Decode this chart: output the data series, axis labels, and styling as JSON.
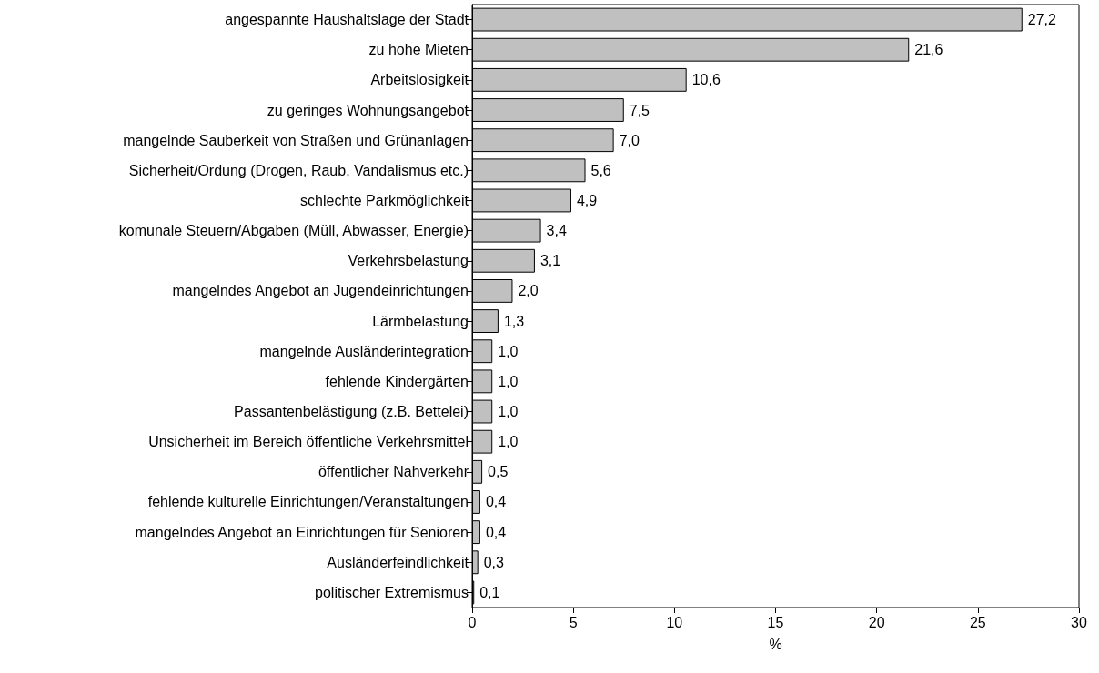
{
  "chart_data": {
    "type": "bar",
    "orientation": "horizontal",
    "xlabel": "%",
    "categories": [
      "angespannte Haushaltslage der Stadt",
      "zu hohe Mieten",
      "Arbeitslosigkeit",
      "zu geringes Wohnungsangebot",
      "mangelnde Sauberkeit von Straßen und Grünanlagen",
      "Sicherheit/Ordung (Drogen, Raub, Vandalismus etc.)",
      "schlechte Parkmöglichkeit",
      "komunale Steuern/Abgaben (Müll, Abwasser, Energie)",
      "Verkehrsbelastung",
      "mangelndes Angebot an Jugendeinrichtungen",
      "Lärmbelastung",
      "mangelnde Ausländerintegration",
      "fehlende Kindergärten",
      "Passantenbelästigung (z.B. Bettelei)",
      "Unsicherheit im Bereich öffentliche Verkehrsmittel",
      "öffentlicher Nahverkehr",
      "fehlende kulturelle Einrichtungen/Veranstaltungen",
      "mangelndes Angebot an Einrichtungen für Senioren",
      "Ausländerfeindlichkeit",
      "politischer Extremismus"
    ],
    "values": [
      27.2,
      21.6,
      10.6,
      7.5,
      7.0,
      5.6,
      4.9,
      3.4,
      3.1,
      2.0,
      1.3,
      1.0,
      1.0,
      1.0,
      1.0,
      0.5,
      0.4,
      0.4,
      0.3,
      0.1
    ],
    "value_labels": [
      "27,2",
      "21,6",
      "10,6",
      "7,5",
      "7,0",
      "5,6",
      "4,9",
      "3,4",
      "3,1",
      "2,0",
      "1,3",
      "1,0",
      "1,0",
      "1,0",
      "1,0",
      "0,5",
      "0,4",
      "0,4",
      "0,3",
      "0,1"
    ],
    "color": "#c0c0c0",
    "xlim": [
      0,
      30
    ],
    "xticks": [
      0,
      5,
      10,
      15,
      20,
      25,
      30
    ],
    "grid": false
  }
}
